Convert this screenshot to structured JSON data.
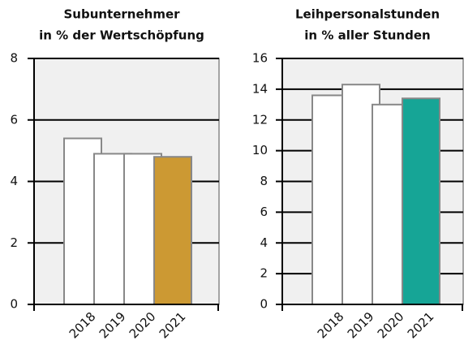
{
  "chart_data": [
    {
      "type": "bar",
      "title": [
        "Subunternehmer",
        "in % der Wertschöpfung"
      ],
      "categories": [
        "2018",
        "2019",
        "2020",
        "2021"
      ],
      "values": [
        5.4,
        4.9,
        4.9,
        4.8
      ],
      "colors": [
        "#ffffff",
        "#ffffff",
        "#ffffff",
        "#cc9933"
      ],
      "ylim": [
        0,
        8
      ],
      "yticks": [
        0,
        2,
        4,
        6,
        8
      ],
      "grid": true
    },
    {
      "type": "bar",
      "title": [
        "Leihpersonalstunden",
        "in % aller Stunden"
      ],
      "categories": [
        "2018",
        "2019",
        "2020",
        "2021"
      ],
      "values": [
        13.6,
        14.3,
        13.0,
        13.4
      ],
      "colors": [
        "#ffffff",
        "#ffffff",
        "#ffffff",
        "#16a596"
      ],
      "ylim": [
        0,
        16
      ],
      "yticks": [
        0,
        2,
        4,
        6,
        8,
        10,
        12,
        14,
        16
      ],
      "grid": true
    }
  ]
}
